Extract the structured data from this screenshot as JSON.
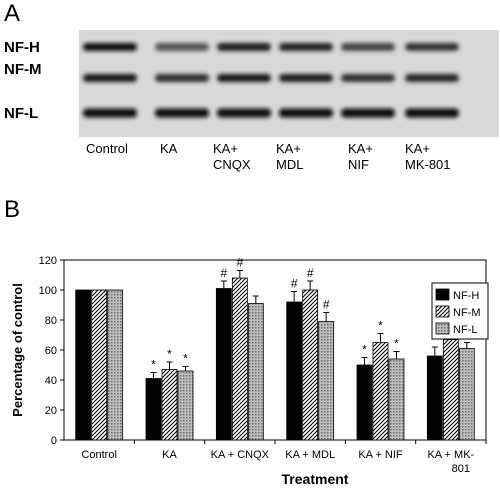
{
  "panel_a": {
    "letter": "A",
    "band_labels": [
      "NF-H",
      "NF-M",
      "NF-L"
    ],
    "lanes": [
      {
        "line1": "Control",
        "line2": ""
      },
      {
        "line1": "KA",
        "line2": ""
      },
      {
        "line1": "KA+",
        "line2": "CNQX"
      },
      {
        "line1": "KA+",
        "line2": "MDL"
      },
      {
        "line1": "KA+",
        "line2": "NIF"
      },
      {
        "line1": "KA+",
        "line2": "MK-801"
      }
    ]
  },
  "panel_b": {
    "letter": "B"
  },
  "chart_data": {
    "type": "bar",
    "xlabel": "Treatment",
    "ylabel": "Percentage of control",
    "ylim": [
      0,
      120
    ],
    "yticks": [
      0,
      20,
      40,
      60,
      80,
      100,
      120
    ],
    "grid": false,
    "legend_position": "right",
    "categories": [
      {
        "line1": "Control",
        "line2": ""
      },
      {
        "line1": "KA",
        "line2": ""
      },
      {
        "line1": "KA + CNQX",
        "line2": ""
      },
      {
        "line1": "KA + MDL",
        "line2": ""
      },
      {
        "line1": "KA + NIF",
        "line2": ""
      },
      {
        "line1": "KA + MK-",
        "line2": "801"
      }
    ],
    "series": [
      {
        "name": "NF-H",
        "fill": "solid",
        "color": "#000000",
        "values": [
          100,
          41,
          101,
          92,
          50,
          56
        ],
        "errors": [
          0,
          4,
          5,
          7,
          5,
          6
        ],
        "annotations": [
          "",
          "*",
          "#",
          "#",
          "*",
          "*"
        ]
      },
      {
        "name": "NF-M",
        "fill": "hatch",
        "color": "#000000",
        "values": [
          100,
          47,
          108,
          100,
          65,
          67
        ],
        "errors": [
          0,
          5,
          5,
          6,
          6,
          7
        ],
        "annotations": [
          "",
          "*",
          "#",
          "#",
          "*",
          "*"
        ]
      },
      {
        "name": "NF-L",
        "fill": "dots",
        "color": "#8c8c8c",
        "values": [
          100,
          46,
          91,
          79,
          54,
          61
        ],
        "errors": [
          0,
          3,
          5,
          6,
          5,
          4
        ],
        "annotations": [
          "",
          "*",
          "",
          "#",
          "*",
          "*"
        ]
      }
    ]
  }
}
